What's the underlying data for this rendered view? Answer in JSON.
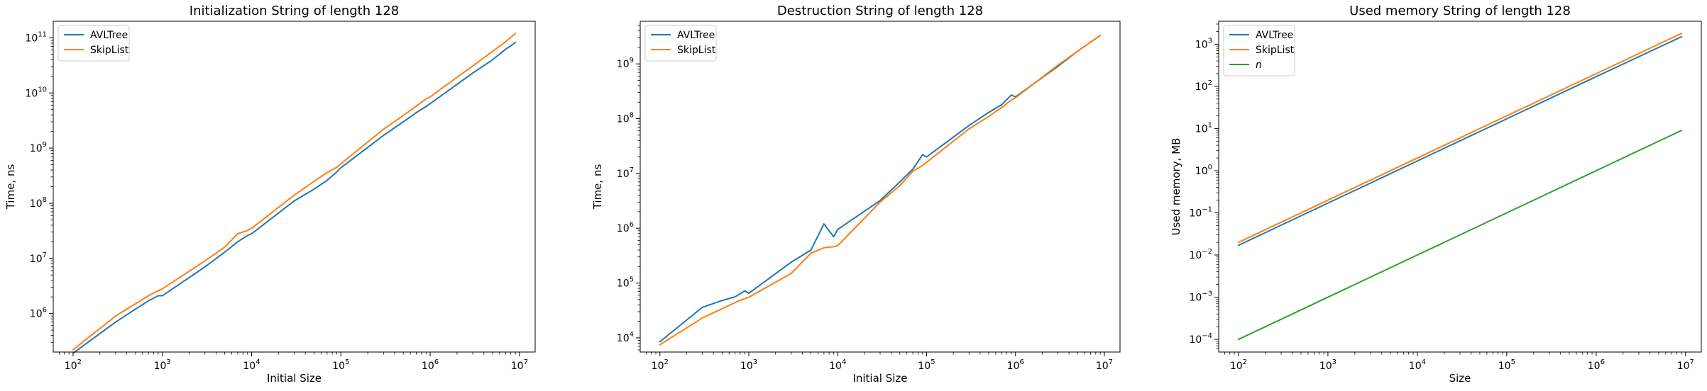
{
  "colors": {
    "avl": "#1f77b4",
    "skip": "#ff7f0e",
    "n": "#2ca02c"
  },
  "chart_data": [
    {
      "type": "line",
      "title": "Initialization String of length 128",
      "xlabel": "Initial Size",
      "ylabel": "Time, ns",
      "xscale": "log",
      "yscale": "log",
      "xlim": [
        60,
        15000000
      ],
      "ylim": [
        200000,
        200000000000
      ],
      "xticks": [
        {
          "value": 100,
          "base": "10",
          "exp": "2"
        },
        {
          "value": 1000,
          "base": "10",
          "exp": "3"
        },
        {
          "value": 10000,
          "base": "10",
          "exp": "4"
        },
        {
          "value": 100000,
          "base": "10",
          "exp": "5"
        },
        {
          "value": 1000000,
          "base": "10",
          "exp": "6"
        },
        {
          "value": 10000000,
          "base": "10",
          "exp": "7"
        }
      ],
      "yticks": [
        {
          "value": 1000000,
          "base": "10",
          "exp": "6"
        },
        {
          "value": 10000000,
          "base": "10",
          "exp": "7"
        },
        {
          "value": 100000000,
          "base": "10",
          "exp": "8"
        },
        {
          "value": 1000000000,
          "base": "10",
          "exp": "9"
        },
        {
          "value": 10000000000,
          "base": "10",
          "exp": "10"
        },
        {
          "value": 100000000000,
          "base": "10",
          "exp": "11"
        }
      ],
      "legend_loc": "upper left",
      "series": [
        {
          "name": "AVLTree",
          "color_key": "avl",
          "x": [
            100,
            300,
            500,
            700,
            900,
            1000,
            3000,
            5000,
            7000,
            9000,
            10000,
            30000,
            50000,
            70000,
            90000,
            100000,
            300000,
            500000,
            700000,
            900000,
            1000000,
            3000000,
            5000000,
            7000000,
            9000000
          ],
          "y": [
            190000,
            700000,
            1200000,
            1700000,
            2100000,
            2100000,
            7000000,
            13000000,
            20000000,
            26000000,
            28000000,
            110000000,
            180000000,
            260000000,
            370000000,
            440000000,
            1700000000,
            3000000000,
            4400000000,
            5700000000,
            6400000000,
            23000000000,
            40000000000,
            62000000000,
            82000000000
          ]
        },
        {
          "name": "SkipList",
          "color_key": "skip",
          "x": [
            100,
            300,
            500,
            700,
            900,
            1000,
            3000,
            5000,
            7000,
            9000,
            10000,
            30000,
            50000,
            70000,
            90000,
            100000,
            300000,
            500000,
            700000,
            900000,
            1000000,
            3000000,
            5000000,
            7000000,
            9000000
          ],
          "y": [
            220000,
            900000,
            1500000,
            2100000,
            2600000,
            2800000,
            9000000,
            16000000,
            28000000,
            32000000,
            35000000,
            140000000,
            250000000,
            360000000,
            450000000,
            520000000,
            2200000000,
            3900000000,
            5800000000,
            7800000000,
            8500000000,
            31000000000,
            57000000000,
            85000000000,
            120000000000
          ]
        }
      ]
    },
    {
      "type": "line",
      "title": "Destruction String of length 128",
      "xlabel": "Initial Size",
      "ylabel": "Time, ns",
      "xscale": "log",
      "yscale": "log",
      "xlim": [
        60,
        15000000
      ],
      "ylim": [
        5500,
        6000000000
      ],
      "xticks": [
        {
          "value": 100,
          "base": "10",
          "exp": "2"
        },
        {
          "value": 1000,
          "base": "10",
          "exp": "3"
        },
        {
          "value": 10000,
          "base": "10",
          "exp": "4"
        },
        {
          "value": 100000,
          "base": "10",
          "exp": "5"
        },
        {
          "value": 1000000,
          "base": "10",
          "exp": "6"
        },
        {
          "value": 10000000,
          "base": "10",
          "exp": "7"
        }
      ],
      "yticks": [
        {
          "value": 10000,
          "base": "10",
          "exp": "4"
        },
        {
          "value": 100000,
          "base": "10",
          "exp": "5"
        },
        {
          "value": 1000000,
          "base": "10",
          "exp": "6"
        },
        {
          "value": 10000000,
          "base": "10",
          "exp": "7"
        },
        {
          "value": 100000000,
          "base": "10",
          "exp": "8"
        },
        {
          "value": 1000000000,
          "base": "10",
          "exp": "9"
        }
      ],
      "legend_loc": "upper left",
      "series": [
        {
          "name": "AVLTree",
          "color_key": "avl",
          "x": [
            100,
            300,
            500,
            700,
            900,
            1000,
            3000,
            5000,
            7000,
            9000,
            10000,
            30000,
            50000,
            70000,
            90000,
            100000,
            300000,
            500000,
            700000,
            900000,
            1000000,
            3000000,
            5000000,
            7000000,
            9000000
          ],
          "y": [
            8500,
            36000,
            48000,
            56000,
            72000,
            65000,
            240000,
            400000,
            1200000,
            700000,
            950000,
            3200000,
            7000000,
            12000000,
            22000000,
            20000000,
            75000000,
            130000000,
            180000000,
            270000000,
            250000000,
            900000000,
            1700000000,
            2500000000,
            3300000000
          ]
        },
        {
          "name": "SkipList",
          "color_key": "skip",
          "x": [
            100,
            300,
            500,
            700,
            900,
            1000,
            3000,
            5000,
            7000,
            9000,
            10000,
            30000,
            50000,
            70000,
            90000,
            100000,
            300000,
            500000,
            700000,
            900000,
            1000000,
            3000000,
            5000000,
            7000000,
            9000000
          ],
          "y": [
            7500,
            23000,
            34000,
            44000,
            52000,
            55000,
            150000,
            350000,
            440000,
            460000,
            480000,
            3000000,
            6000000,
            11000000,
            14000000,
            16000000,
            65000000,
            110000000,
            160000000,
            220000000,
            240000000,
            950000000,
            1700000000,
            2500000000,
            3300000000
          ]
        }
      ]
    },
    {
      "type": "line",
      "title": "Used memory String of length 128",
      "xlabel": "Size",
      "ylabel": "Used memory, MB",
      "xscale": "log",
      "yscale": "log",
      "xlim": [
        60,
        15000000
      ],
      "ylim": [
        5e-05,
        3500
      ],
      "xticks": [
        {
          "value": 100,
          "base": "10",
          "exp": "2"
        },
        {
          "value": 1000,
          "base": "10",
          "exp": "3"
        },
        {
          "value": 10000,
          "base": "10",
          "exp": "4"
        },
        {
          "value": 100000,
          "base": "10",
          "exp": "5"
        },
        {
          "value": 1000000,
          "base": "10",
          "exp": "6"
        },
        {
          "value": 10000000,
          "base": "10",
          "exp": "7"
        }
      ],
      "yticks": [
        {
          "value": 0.0001,
          "base": "10",
          "exp": "−4"
        },
        {
          "value": 0.001,
          "base": "10",
          "exp": "−3"
        },
        {
          "value": 0.01,
          "base": "10",
          "exp": "−2"
        },
        {
          "value": 0.1,
          "base": "10",
          "exp": "−1"
        },
        {
          "value": 1,
          "base": "10",
          "exp": "0"
        },
        {
          "value": 10,
          "base": "10",
          "exp": "1"
        },
        {
          "value": 100,
          "base": "10",
          "exp": "2"
        },
        {
          "value": 1000,
          "base": "10",
          "exp": "3"
        }
      ],
      "legend_loc": "upper left",
      "series": [
        {
          "name": "AVLTree",
          "color_key": "avl",
          "x": [
            100,
            1000,
            10000,
            100000,
            1000000,
            9000000
          ],
          "y": [
            0.017,
            0.17,
            1.7,
            17,
            170,
            1500
          ]
        },
        {
          "name": "SkipList",
          "color_key": "skip",
          "x": [
            100,
            1000,
            10000,
            100000,
            1000000,
            9000000
          ],
          "y": [
            0.02,
            0.2,
            2,
            20,
            200,
            1800
          ]
        },
        {
          "name": "n",
          "italic": true,
          "color_key": "n",
          "x": [
            100,
            1000,
            10000,
            100000,
            1000000,
            9000000
          ],
          "y": [
            0.0001,
            0.001,
            0.01,
            0.1,
            1,
            9
          ]
        }
      ]
    }
  ]
}
